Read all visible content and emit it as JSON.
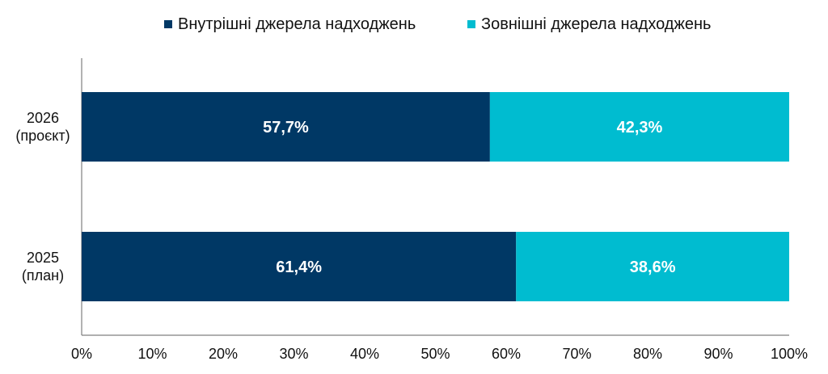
{
  "chart_data": {
    "type": "bar",
    "orientation": "horizontal",
    "stacked": true,
    "categories": [
      [
        "2026",
        "(проєкт)"
      ],
      [
        "2025",
        "(план)"
      ]
    ],
    "series": [
      {
        "name": "Внутрішні джерела надходжень",
        "color": "#003865",
        "values": [
          57.7,
          61.4
        ],
        "labels": [
          "57,7%",
          "61,4%"
        ]
      },
      {
        "name": "Зовнішні джерела надходжень",
        "color": "#00bcd0",
        "values": [
          42.3,
          38.6
        ],
        "labels": [
          "42,3%",
          "38,6%"
        ]
      }
    ],
    "xlim": [
      0,
      100
    ],
    "xticks": [
      "0%",
      "10%",
      "20%",
      "30%",
      "40%",
      "50%",
      "60%",
      "70%",
      "80%",
      "90%",
      "100%"
    ],
    "grid": false,
    "legend": "top-center",
    "title": "",
    "xlabel": "",
    "ylabel": ""
  }
}
